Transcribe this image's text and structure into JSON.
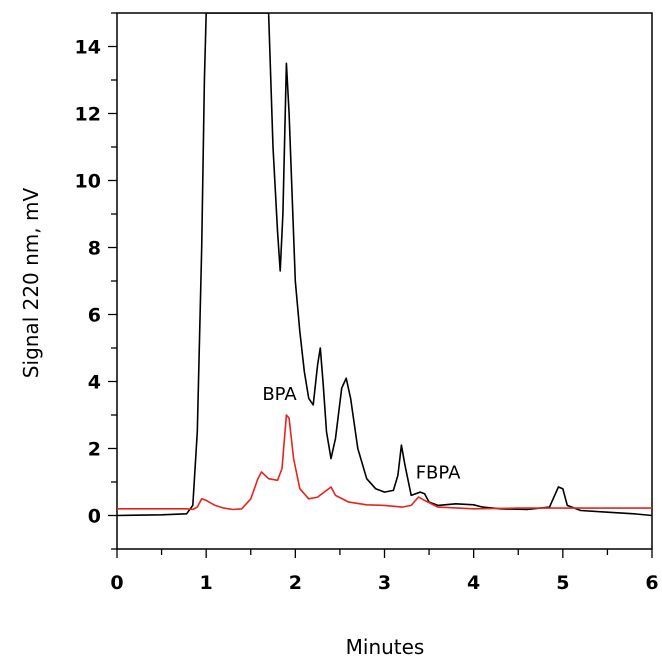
{
  "chart_data": {
    "type": "line",
    "xlabel": "Minutes",
    "ylabel": "Signal 220 nm, mV",
    "xlim": [
      0,
      6
    ],
    "ylim": [
      -1,
      15
    ],
    "x_ticks": [
      0,
      1,
      2,
      3,
      4,
      5,
      6
    ],
    "y_ticks": [
      0,
      2,
      4,
      6,
      8,
      10,
      12,
      14
    ],
    "grid": false,
    "series": [
      {
        "color": "#000000",
        "points": [
          [
            0.0,
            0.0
          ],
          [
            0.5,
            0.02
          ],
          [
            0.78,
            0.05
          ],
          [
            0.85,
            0.3
          ],
          [
            0.9,
            2.5
          ],
          [
            0.95,
            8.0
          ],
          [
            0.98,
            13.0
          ],
          [
            1.0,
            15.0
          ],
          [
            1.7,
            15.0
          ],
          [
            1.75,
            11.0
          ],
          [
            1.8,
            8.5
          ],
          [
            1.83,
            7.3
          ],
          [
            1.86,
            9.0
          ],
          [
            1.9,
            13.5
          ],
          [
            1.93,
            12.0
          ],
          [
            2.0,
            7.0
          ],
          [
            2.05,
            5.5
          ],
          [
            2.1,
            4.3
          ],
          [
            2.15,
            3.5
          ],
          [
            2.2,
            3.3
          ],
          [
            2.25,
            4.5
          ],
          [
            2.28,
            5.0
          ],
          [
            2.31,
            4.0
          ],
          [
            2.35,
            2.5
          ],
          [
            2.4,
            1.7
          ],
          [
            2.45,
            2.3
          ],
          [
            2.52,
            3.8
          ],
          [
            2.57,
            4.1
          ],
          [
            2.62,
            3.5
          ],
          [
            2.7,
            2.0
          ],
          [
            2.8,
            1.1
          ],
          [
            2.9,
            0.8
          ],
          [
            3.0,
            0.7
          ],
          [
            3.1,
            0.75
          ],
          [
            3.15,
            1.2
          ],
          [
            3.19,
            2.1
          ],
          [
            3.23,
            1.5
          ],
          [
            3.3,
            0.6
          ],
          [
            3.4,
            0.7
          ],
          [
            3.45,
            0.65
          ],
          [
            3.5,
            0.4
          ],
          [
            3.6,
            0.3
          ],
          [
            3.8,
            0.35
          ],
          [
            4.0,
            0.32
          ],
          [
            4.1,
            0.25
          ],
          [
            4.3,
            0.2
          ],
          [
            4.6,
            0.18
          ],
          [
            4.85,
            0.25
          ],
          [
            4.95,
            0.85
          ],
          [
            5.0,
            0.8
          ],
          [
            5.05,
            0.3
          ],
          [
            5.2,
            0.15
          ],
          [
            5.5,
            0.1
          ],
          [
            5.8,
            0.05
          ],
          [
            6.0,
            0.0
          ]
        ]
      },
      {
        "color": "#e8231e",
        "points": [
          [
            0.0,
            0.2
          ],
          [
            0.5,
            0.2
          ],
          [
            0.78,
            0.2
          ],
          [
            0.85,
            0.18
          ],
          [
            0.9,
            0.25
          ],
          [
            0.95,
            0.5
          ],
          [
            1.0,
            0.45
          ],
          [
            1.1,
            0.3
          ],
          [
            1.2,
            0.22
          ],
          [
            1.3,
            0.18
          ],
          [
            1.4,
            0.2
          ],
          [
            1.5,
            0.5
          ],
          [
            1.58,
            1.1
          ],
          [
            1.62,
            1.3
          ],
          [
            1.7,
            1.1
          ],
          [
            1.8,
            1.05
          ],
          [
            1.85,
            1.4
          ],
          [
            1.9,
            3.0
          ],
          [
            1.93,
            2.9
          ],
          [
            1.98,
            1.7
          ],
          [
            2.05,
            0.8
          ],
          [
            2.15,
            0.5
          ],
          [
            2.25,
            0.55
          ],
          [
            2.35,
            0.75
          ],
          [
            2.4,
            0.85
          ],
          [
            2.45,
            0.6
          ],
          [
            2.6,
            0.4
          ],
          [
            2.8,
            0.32
          ],
          [
            3.0,
            0.3
          ],
          [
            3.2,
            0.25
          ],
          [
            3.3,
            0.3
          ],
          [
            3.38,
            0.55
          ],
          [
            3.45,
            0.45
          ],
          [
            3.6,
            0.25
          ],
          [
            4.0,
            0.2
          ],
          [
            4.5,
            0.22
          ],
          [
            5.0,
            0.22
          ],
          [
            5.5,
            0.22
          ],
          [
            6.0,
            0.22
          ]
        ]
      }
    ],
    "annotations": [
      {
        "text": "BPA",
        "x": 1.63,
        "y": 3.45
      },
      {
        "text": "FBPA",
        "x": 3.35,
        "y": 1.1
      }
    ]
  }
}
